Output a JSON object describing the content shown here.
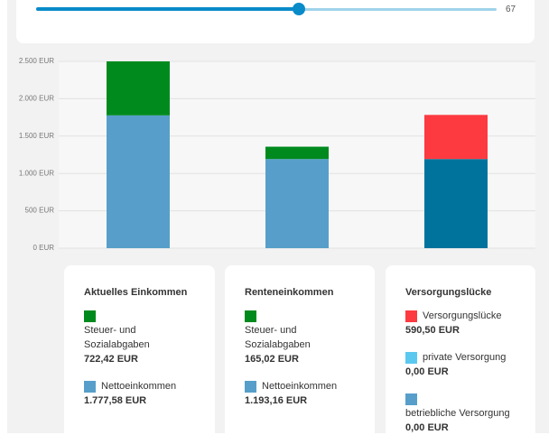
{
  "slider": {
    "value": 67
  },
  "chart_data": {
    "type": "bar",
    "stacked": true,
    "categories": [
      null,
      null,
      null
    ],
    "series": [
      {
        "values": [
          1777.58,
          1193.16,
          1193.16
        ],
        "colors": [
          "#579fca",
          "#579fca",
          "#00739d"
        ]
      },
      {
        "values": [
          722.42,
          165.02,
          590.5
        ],
        "colors": [
          "#008a1e",
          "#008a1e",
          "#fc3a40"
        ]
      }
    ],
    "ylim": [
      0,
      2500
    ],
    "yticks": [
      {
        "value": 0,
        "label": "0 EUR"
      },
      {
        "value": 500,
        "label": "500 EUR"
      },
      {
        "value": 1000,
        "label": "1.000 EUR"
      },
      {
        "value": 1500,
        "label": "1.500 EUR"
      },
      {
        "value": 2000,
        "label": "2.000 EUR"
      },
      {
        "value": 2500,
        "label": "2.500 EUR"
      }
    ],
    "grid": true
  },
  "cards": [
    {
      "title": "Aktuelles Einkommen",
      "items": [
        {
          "label": "Steuer- und Sozialabgaben",
          "value": "722,42 EUR"
        },
        {
          "label": "Nettoeinkommen",
          "value": "1.777,58 EUR"
        }
      ]
    },
    {
      "title": "Renteneinkommen",
      "items": [
        {
          "label": "Steuer- und Sozialabgaben",
          "value": "165,02 EUR"
        },
        {
          "label": "Nettoeinkommen",
          "value": "1.193,16 EUR"
        }
      ]
    },
    {
      "title": "Versorgungslücke",
      "items": [
        {
          "label": "Versorgungslücke",
          "value": "590,50 EUR"
        },
        {
          "label": "private Versorgung",
          "value": "0,00 EUR"
        },
        {
          "label": "betriebliche Versorgung",
          "value": "0,00 EUR"
        }
      ]
    }
  ]
}
